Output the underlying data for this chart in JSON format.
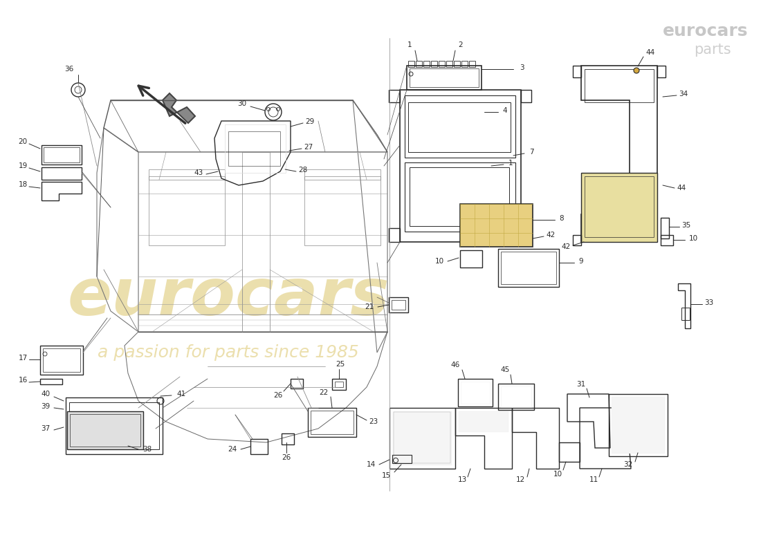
{
  "background_color": "#ffffff",
  "line_color": "#2a2a2a",
  "watermark_text1": "eurocars",
  "watermark_text2": "a passion for parts since 1985",
  "watermark_color": "#d4b84a",
  "logo_text1": "eurocars",
  "logo_color": "#cccccc"
}
